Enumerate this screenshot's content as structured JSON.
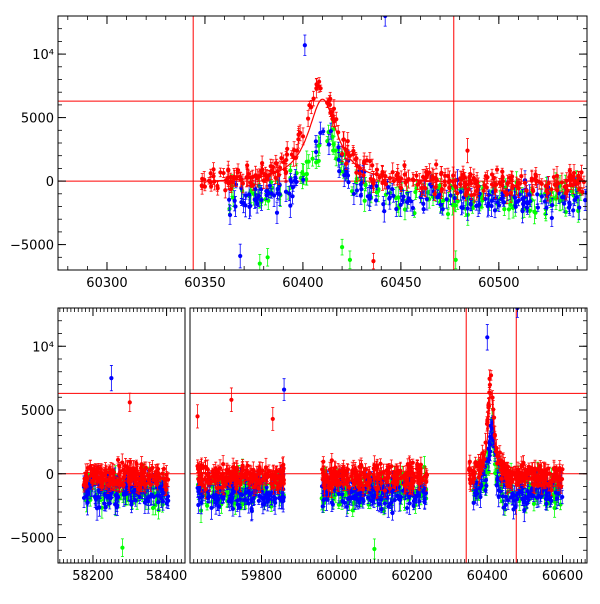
{
  "chart_data": [
    {
      "type": "scatter",
      "panel": "top",
      "title": "",
      "xlabel": "",
      "ylabel": "",
      "xlim": [
        60275,
        60545
      ],
      "ylim": [
        -7000,
        13000
      ],
      "x_ticks": [
        60300,
        60350,
        60400,
        60450,
        60500
      ],
      "x_tick_labels": [
        "60300",
        "60350",
        "60400",
        "60450",
        "60500"
      ],
      "y_ticks": [
        -5000,
        0,
        5000,
        10000
      ],
      "y_tick_labels": [
        "−5000",
        "0",
        "5000",
        "10⁴"
      ],
      "hlines": [
        6300,
        0
      ],
      "vlines": [
        60344,
        60477
      ],
      "grid": false,
      "series": [
        {
          "color": "#ff0000",
          "segments": [
            {
              "x0": 60348,
              "x1": 60545
            }
          ],
          "peak": {
            "x": 60409,
            "y": 7800
          }
        },
        {
          "color": "#0000ff",
          "segments": [
            {
              "x0": 60362,
              "x1": 60545
            }
          ],
          "peak": {
            "x": 60412,
            "y": 3600
          }
        },
        {
          "color": "#00ff00",
          "segments": [
            {
              "x0": 60362,
              "x1": 60545
            }
          ],
          "peak": {
            "x": 60412,
            "y": 3300
          }
        }
      ],
      "model_curve": {
        "color": "#ff0000",
        "peak_x": 60410,
        "peak_y": 6600,
        "width": 9
      },
      "outliers": [
        {
          "color": "#0000ff",
          "x": 60401,
          "y": 10700
        },
        {
          "color": "#0000ff",
          "x": 60442,
          "y": 13000
        },
        {
          "color": "#0000ff",
          "x": 60368,
          "y": -5900
        },
        {
          "color": "#00ff00",
          "x": 60378,
          "y": -6500
        },
        {
          "color": "#00ff00",
          "x": 60382,
          "y": -6000
        },
        {
          "color": "#00ff00",
          "x": 60420,
          "y": -5200
        },
        {
          "color": "#00ff00",
          "x": 60424,
          "y": -6200
        },
        {
          "color": "#ff0000",
          "x": 60436,
          "y": -6300
        },
        {
          "color": "#ff0000",
          "x": 60484,
          "y": 2400
        },
        {
          "color": "#00ff00",
          "x": 60478,
          "y": -6200
        }
      ]
    },
    {
      "type": "scatter",
      "panel": "bottom",
      "title": "",
      "xlabel": "",
      "ylabel": "",
      "xlim": [
        58105,
        60665
      ],
      "ylim": [
        -7000,
        13000
      ],
      "x_ticks": [
        58200,
        58400,
        59800,
        60000,
        60200,
        60400,
        60600
      ],
      "x_tick_labels": [
        "58200",
        "58400",
        "59800",
        "60000",
        "60200",
        "60400",
        "60600"
      ],
      "y_ticks": [
        -5000,
        0,
        5000,
        10000
      ],
      "y_tick_labels": [
        "−5000",
        "0",
        "5000",
        "10⁴"
      ],
      "hlines": [
        6300,
        0
      ],
      "vlines": [
        60344,
        60477
      ],
      "grid": false,
      "axis_break": true,
      "break_ranges": [
        {
          "x0": 58105,
          "x1": 58450
        },
        {
          "x0": 59610,
          "x1": 60665
        }
      ],
      "series": [
        {
          "color": "#ff0000",
          "segments": [
            {
              "x0": 58175,
              "x1": 58405
            },
            {
              "x0": 59630,
              "x1": 59860
            },
            {
              "x0": 59960,
              "x1": 60240
            },
            {
              "x0": 60350,
              "x1": 60600
            }
          ],
          "peak": {
            "x": 60409,
            "y": 7800
          }
        },
        {
          "color": "#0000ff",
          "segments": [
            {
              "x0": 58175,
              "x1": 58405
            },
            {
              "x0": 59630,
              "x1": 59860
            },
            {
              "x0": 59960,
              "x1": 60240
            },
            {
              "x0": 60362,
              "x1": 60600
            }
          ],
          "peak": {
            "x": 60412,
            "y": 3600
          }
        },
        {
          "color": "#00ff00",
          "segments": [
            {
              "x0": 58175,
              "x1": 58405
            },
            {
              "x0": 59630,
              "x1": 59860
            },
            {
              "x0": 59960,
              "x1": 60240
            },
            {
              "x0": 60362,
              "x1": 60600
            }
          ],
          "peak": {
            "x": 60412,
            "y": 3300
          }
        }
      ],
      "model_curve": {
        "color": "#ff0000",
        "peak_x": 60410,
        "peak_y": 6600,
        "width": 9
      },
      "outliers": [
        {
          "color": "#0000ff",
          "x": 58250,
          "y": 7500
        },
        {
          "color": "#ff0000",
          "x": 58300,
          "y": 5600
        },
        {
          "color": "#ff0000",
          "x": 59630,
          "y": 4500
        },
        {
          "color": "#ff0000",
          "x": 59720,
          "y": 5800
        },
        {
          "color": "#ff0000",
          "x": 59830,
          "y": 4300
        },
        {
          "color": "#0000ff",
          "x": 59860,
          "y": 6600
        },
        {
          "color": "#0000ff",
          "x": 60400,
          "y": 10700
        },
        {
          "color": "#0000ff",
          "x": 60480,
          "y": 13000
        },
        {
          "color": "#00ff00",
          "x": 58280,
          "y": -5800
        },
        {
          "color": "#00ff00",
          "x": 60100,
          "y": -5900
        }
      ]
    }
  ]
}
